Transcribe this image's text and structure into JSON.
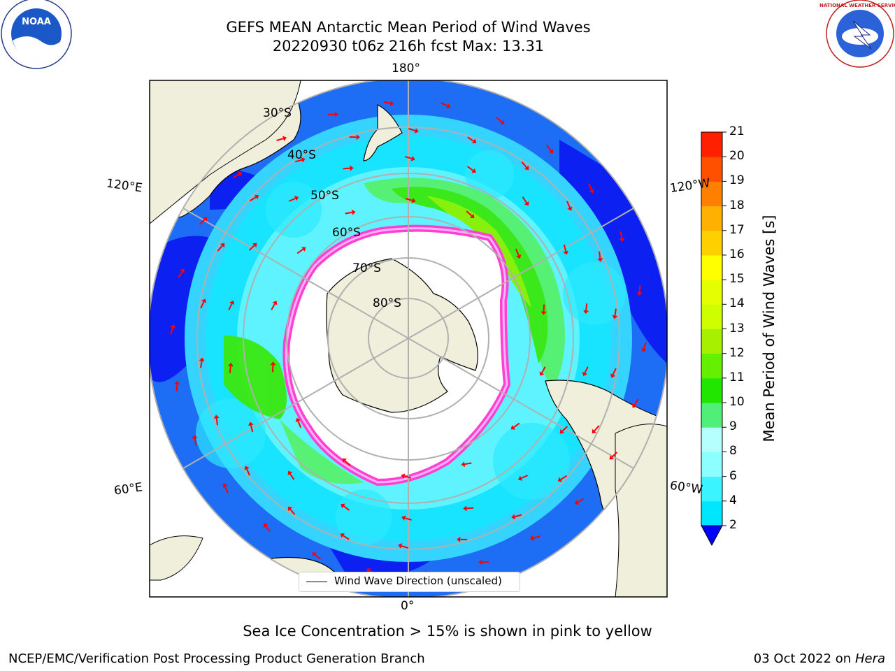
{
  "title_line1": "GEFS MEAN Antarctic Mean Period of Wind Waves",
  "title_line2": "20220930 t06z 216h fcst   Max: 13.31",
  "subtitle": "Sea Ice Concentration > 15% is shown in pink to yellow",
  "footer_left": "NCEP/EMC/Verification Post Processing Product Generation Branch",
  "footer_date": "03 Oct 2022 on ",
  "footer_machine": "Hera",
  "legend_label": "Wind Wave Direction (unscaled)",
  "colorbar": {
    "label": "Mean Period of Wind Waves [s]",
    "ticks": [
      "2",
      "4",
      "6",
      "8",
      "9",
      "10",
      "11",
      "12",
      "13",
      "14",
      "15",
      "16",
      "17",
      "18",
      "19",
      "20",
      "21"
    ],
    "colors": [
      "#0072ff",
      "#00e6ff",
      "#3af5ff",
      "#8cffff",
      "#b6ffff",
      "#50f078",
      "#20e600",
      "#64f000",
      "#a6f000",
      "#cdff00",
      "#e6ff00",
      "#ffff00",
      "#ffd000",
      "#ffb000",
      "#ff8000",
      "#ff5000",
      "#ff2000",
      "#ff0000"
    ],
    "under_color": "#0000ff"
  },
  "map": {
    "lat_labels": [
      "30°S",
      "40°S",
      "50°S",
      "60°S",
      "70°S",
      "80°S"
    ],
    "lon_labels": {
      "top": "180°",
      "bottom": "0°",
      "upper_left": "120°E",
      "upper_right": "120°W",
      "lower_left": "60°E",
      "lower_right": "60°W"
    }
  },
  "logos": {
    "noaa": "NOAA",
    "nws": "NATIONAL WEATHER SERVICE"
  }
}
